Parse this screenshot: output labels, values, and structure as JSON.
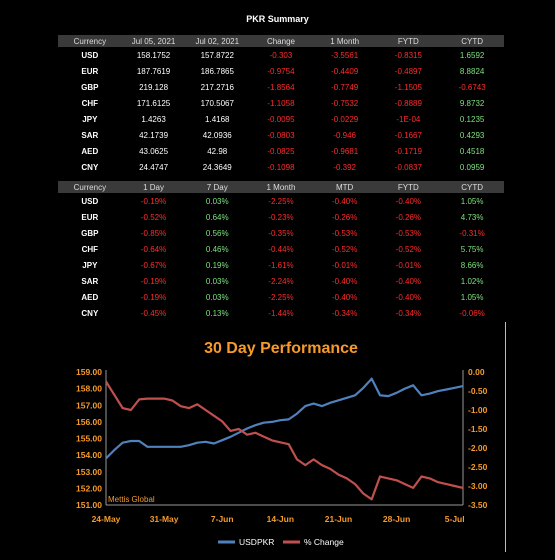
{
  "title": "PKR Summary",
  "table1": {
    "headers": [
      "Currency",
      "Jul 05, 2021",
      "Jul 02, 2021",
      "Change",
      "1 Month",
      "FYTD",
      "CYTD"
    ],
    "rows": [
      [
        "USD",
        "158.1752",
        "157.8722",
        "-0.303",
        "-3.5561",
        "-0.8315",
        "1.6592"
      ],
      [
        "EUR",
        "187.7619",
        "186.7865",
        "-0.9754",
        "-0.4409",
        "-0.4897",
        "8.8824"
      ],
      [
        "GBP",
        "219.128",
        "217.2716",
        "-1.8564",
        "-0.7749",
        "-1.1505",
        "-0.6743"
      ],
      [
        "CHF",
        "171.6125",
        "170.5067",
        "-1.1058",
        "-0.7532",
        "-0.8889",
        "9.8732"
      ],
      [
        "JPY",
        "1.4263",
        "1.4168",
        "-0.0095",
        "-0.0229",
        "-1E-04",
        "0.1235"
      ],
      [
        "SAR",
        "42.1739",
        "42.0936",
        "-0.0803",
        "-0.946",
        "-0.1667",
        "0.4293"
      ],
      [
        "AED",
        "43.0625",
        "42.98",
        "-0.0825",
        "-0.9681",
        "-0.1719",
        "0.4518"
      ],
      [
        "CNY",
        "24.4747",
        "24.3649",
        "-0.1098",
        "-0.392",
        "-0.0837",
        "0.0959"
      ]
    ]
  },
  "table2": {
    "headers": [
      "Currency",
      "1 Day",
      "7 Day",
      "1 Month",
      "MTD",
      "FYTD",
      "CYTD"
    ],
    "rows": [
      [
        "USD",
        "-0.19%",
        "0.03%",
        "-2.25%",
        "-0.40%",
        "-0.40%",
        "1.05%"
      ],
      [
        "EUR",
        "-0.52%",
        "0.64%",
        "-0.23%",
        "-0.26%",
        "-0.26%",
        "4.73%"
      ],
      [
        "GBP",
        "-0.85%",
        "0.56%",
        "-0.35%",
        "-0.53%",
        "-0.53%",
        "-0.31%"
      ],
      [
        "CHF",
        "-0.64%",
        "0.46%",
        "-0.44%",
        "-0.52%",
        "-0.52%",
        "5.75%"
      ],
      [
        "JPY",
        "-0.67%",
        "0.19%",
        "-1.61%",
        "-0.01%",
        "-0.01%",
        "8.66%"
      ],
      [
        "SAR",
        "-0.19%",
        "0.03%",
        "-2.24%",
        "-0.40%",
        "-0.40%",
        "1.02%"
      ],
      [
        "AED",
        "-0.19%",
        "0.03%",
        "-2.25%",
        "-0.40%",
        "-0.40%",
        "1.05%"
      ],
      [
        "CNY",
        "-0.45%",
        "0.13%",
        "-1.44%",
        "-0.34%",
        "-0.34%",
        "-0.06%"
      ]
    ]
  },
  "chart_data": {
    "type": "line",
    "title": "30 Day Performance",
    "watermark": "Mettis Global",
    "x_tick_labels": [
      "24-May",
      "31-May",
      "7-Jun",
      "14-Jun",
      "21-Jun",
      "28-Jun",
      "5-Jul"
    ],
    "x_tick_index": [
      0,
      7,
      14,
      21,
      28,
      35,
      42
    ],
    "y_left": {
      "min": 151,
      "max": 159,
      "ticks": [
        "151.00",
        "152.00",
        "153.00",
        "154.00",
        "155.00",
        "156.00",
        "157.00",
        "158.00",
        "159.00"
      ]
    },
    "y_right": {
      "min": -3.5,
      "max": 0,
      "ticks": [
        "-3.50",
        "-3.00",
        "-2.50",
        "-2.00",
        "-1.50",
        "-1.00",
        "-0.50",
        "0.00"
      ]
    },
    "legend": "bottom",
    "series": [
      {
        "name": "USDPKR",
        "axis": "left",
        "color": "#4f81bd",
        "points": [
          [
            0,
            153.8
          ],
          [
            1,
            154.3
          ],
          [
            2,
            154.75
          ],
          [
            3,
            154.85
          ],
          [
            4,
            154.85
          ],
          [
            5,
            154.5
          ],
          [
            7,
            154.5
          ],
          [
            8,
            154.5
          ],
          [
            9,
            154.5
          ],
          [
            10,
            154.6
          ],
          [
            11,
            154.75
          ],
          [
            12,
            154.8
          ],
          [
            13,
            154.7
          ],
          [
            14,
            154.9
          ],
          [
            15,
            155.1
          ],
          [
            16,
            155.35
          ],
          [
            17,
            155.6
          ],
          [
            18,
            155.8
          ],
          [
            19,
            155.95
          ],
          [
            20,
            156.0
          ],
          [
            21,
            156.1
          ],
          [
            22,
            156.15
          ],
          [
            23,
            156.5
          ],
          [
            24,
            156.95
          ],
          [
            25,
            157.1
          ],
          [
            26,
            156.95
          ],
          [
            27,
            157.15
          ],
          [
            28,
            157.3
          ],
          [
            29,
            157.45
          ],
          [
            30,
            157.6
          ],
          [
            31,
            158.05
          ],
          [
            32,
            158.6
          ],
          [
            33,
            157.6
          ],
          [
            34,
            157.55
          ],
          [
            35,
            157.75
          ],
          [
            36,
            158.0
          ],
          [
            37,
            158.2
          ],
          [
            38,
            157.6
          ],
          [
            39,
            157.7
          ],
          [
            40,
            157.85
          ],
          [
            41,
            157.95
          ],
          [
            42,
            158.05
          ],
          [
            43,
            158.15
          ]
        ]
      },
      {
        "name": "% Change",
        "axis": "right",
        "color": "#c0504d",
        "points": [
          [
            0,
            -0.25
          ],
          [
            1,
            -0.6
          ],
          [
            2,
            -0.95
          ],
          [
            3,
            -1.0
          ],
          [
            4,
            -0.72
          ],
          [
            5,
            -0.7
          ],
          [
            7,
            -0.7
          ],
          [
            8,
            -0.75
          ],
          [
            9,
            -0.9
          ],
          [
            10,
            -0.95
          ],
          [
            11,
            -0.85
          ],
          [
            12,
            -1.0
          ],
          [
            13,
            -1.15
          ],
          [
            14,
            -1.3
          ],
          [
            15,
            -1.55
          ],
          [
            16,
            -1.5
          ],
          [
            17,
            -1.65
          ],
          [
            18,
            -1.6
          ],
          [
            19,
            -1.7
          ],
          [
            20,
            -1.8
          ],
          [
            21,
            -1.85
          ],
          [
            22,
            -1.9
          ],
          [
            23,
            -2.3
          ],
          [
            24,
            -2.45
          ],
          [
            25,
            -2.3
          ],
          [
            26,
            -2.45
          ],
          [
            27,
            -2.55
          ],
          [
            28,
            -2.7
          ],
          [
            29,
            -2.8
          ],
          [
            30,
            -2.95
          ],
          [
            31,
            -3.2
          ],
          [
            32,
            -3.35
          ],
          [
            33,
            -2.75
          ],
          [
            34,
            -2.8
          ],
          [
            35,
            -2.85
          ],
          [
            36,
            -2.95
          ],
          [
            37,
            -3.05
          ],
          [
            38,
            -2.75
          ],
          [
            39,
            -2.8
          ],
          [
            40,
            -2.9
          ],
          [
            41,
            -2.95
          ],
          [
            42,
            -3.0
          ],
          [
            43,
            -3.05
          ]
        ]
      }
    ]
  }
}
